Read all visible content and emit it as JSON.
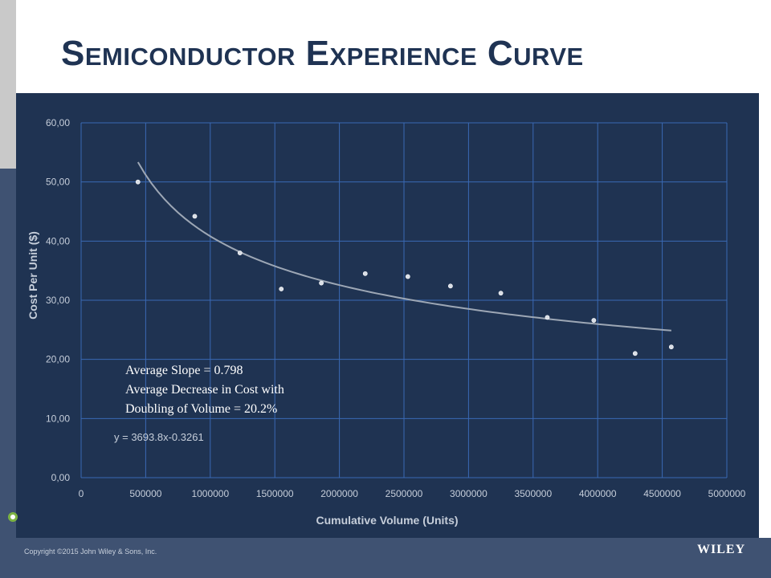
{
  "slide": {
    "title": "Semiconductor Experience Curve",
    "copyright": "Copyright ©2015 John Wiley & Sons, Inc.",
    "publisher": "WILEY"
  },
  "colors": {
    "chart_bg": "#1f3352",
    "grid": "#3a69b4",
    "text": "#c6ceda",
    "trend": "#9da7b5",
    "title": "#1f3353"
  },
  "chart_data": {
    "type": "scatter",
    "xlabel": "Cumulative Volume (Units)",
    "ylabel": "Cost Per Unit ($)",
    "xlim": [
      0,
      5000000
    ],
    "ylim": [
      0,
      60
    ],
    "x_ticks": [
      "0",
      "500000",
      "1000000",
      "1500000",
      "2000000",
      "2500000",
      "3000000",
      "3500000",
      "4000000",
      "4500000",
      "5000000"
    ],
    "y_ticks": [
      "0,00",
      "10,00",
      "20,00",
      "30,00",
      "40,00",
      "50,00",
      "60,00"
    ],
    "grid": true,
    "points": [
      {
        "x": 440000,
        "y": 50.0
      },
      {
        "x": 880000,
        "y": 44.2
      },
      {
        "x": 1230000,
        "y": 38.0
      },
      {
        "x": 1550000,
        "y": 31.9
      },
      {
        "x": 1860000,
        "y": 32.9
      },
      {
        "x": 2200000,
        "y": 34.5
      },
      {
        "x": 2530000,
        "y": 34.0
      },
      {
        "x": 2860000,
        "y": 32.4
      },
      {
        "x": 3250000,
        "y": 31.2
      },
      {
        "x": 3610000,
        "y": 27.1
      },
      {
        "x": 3970000,
        "y": 26.6
      },
      {
        "x": 4290000,
        "y": 21.0
      },
      {
        "x": 4570000,
        "y": 22.1
      }
    ],
    "trendline": {
      "type": "power",
      "coefficient": 3693.8,
      "exponent": -0.3261,
      "x_range": [
        440000,
        4570000
      ],
      "equation_label": "y = 3693.8x-0.3261"
    },
    "annotation": [
      "Average Slope = 0.798",
      "Average Decrease in Cost with",
      "Doubling of Volume = 20.2%"
    ]
  }
}
